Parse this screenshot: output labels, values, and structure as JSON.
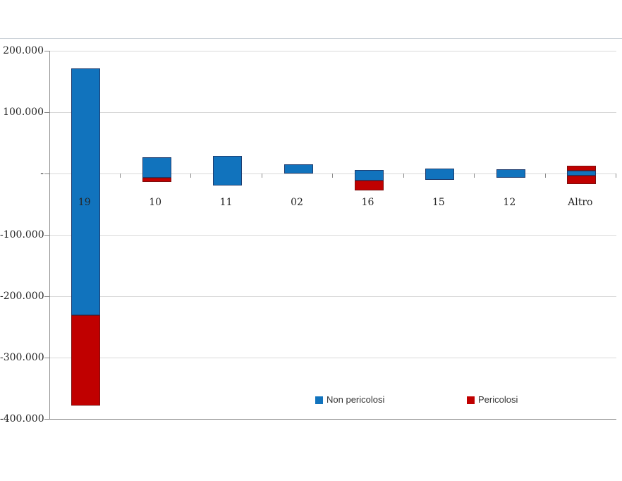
{
  "chart_data": {
    "type": "bar",
    "stacked": true,
    "grid": true,
    "ylim": [
      -400000,
      200000
    ],
    "yticks": [
      {
        "value": 200000,
        "label": "200.000"
      },
      {
        "value": 100000,
        "label": "100.000"
      },
      {
        "value": 0,
        "label": "-"
      },
      {
        "value": -100000,
        "label": "-100.000"
      },
      {
        "value": -200000,
        "label": "-200.000"
      },
      {
        "value": -300000,
        "label": "-300.000"
      },
      {
        "value": -400000,
        "label": "-400.000"
      }
    ],
    "categories": [
      "19",
      "10",
      "11",
      "02",
      "16",
      "15",
      "12",
      "Altro"
    ],
    "series": {
      "non_pericolosi": {
        "label": "Non pericolosi",
        "fill": "#1173BD",
        "border": "#1f3c6e"
      },
      "pericolosi": {
        "label": "Pericolosi",
        "fill": "#C00000",
        "border": "#7c0e0e"
      }
    },
    "bars": [
      {
        "category": "19",
        "segments": [
          {
            "series": "non_pericolosi",
            "from": 171000,
            "to": -231000
          },
          {
            "series": "pericolosi",
            "from": -231000,
            "to": -378000
          }
        ]
      },
      {
        "category": "10",
        "segments": [
          {
            "series": "non_pericolosi",
            "from": 27000,
            "to": -7000
          },
          {
            "series": "pericolosi",
            "from": -7000,
            "to": -14000
          }
        ]
      },
      {
        "category": "11",
        "segments": [
          {
            "series": "non_pericolosi",
            "from": 29000,
            "to": -19000
          }
        ]
      },
      {
        "category": "02",
        "segments": [
          {
            "series": "non_pericolosi",
            "from": 15000,
            "to": 0
          }
        ]
      },
      {
        "category": "16",
        "segments": [
          {
            "series": "non_pericolosi",
            "from": 6000,
            "to": -11000
          },
          {
            "series": "pericolosi",
            "from": -11000,
            "to": -28000
          }
        ]
      },
      {
        "category": "15",
        "segments": [
          {
            "series": "non_pericolosi",
            "from": 8000,
            "to": -10000
          }
        ]
      },
      {
        "category": "12",
        "segments": [
          {
            "series": "non_pericolosi",
            "from": 7000,
            "to": -7000
          }
        ]
      },
      {
        "category": "Altro",
        "segments": [
          {
            "series": "pericolosi",
            "from": 13000,
            "to": 5000
          },
          {
            "series": "non_pericolosi",
            "from": 5000,
            "to": -4000
          },
          {
            "series": "pericolosi",
            "from": -4000,
            "to": -17000
          }
        ]
      }
    ],
    "legend_position": "bottom-inside"
  },
  "legend": {
    "items": [
      {
        "label": "Non pericolosi",
        "color": "#1173BD"
      },
      {
        "label": "Pericolosi",
        "color": "#C00000"
      }
    ]
  },
  "colors": {
    "gridline": "#d9d9d9",
    "axis": "#919191",
    "top_rule": "#c9d0d6",
    "text": "#262626"
  }
}
